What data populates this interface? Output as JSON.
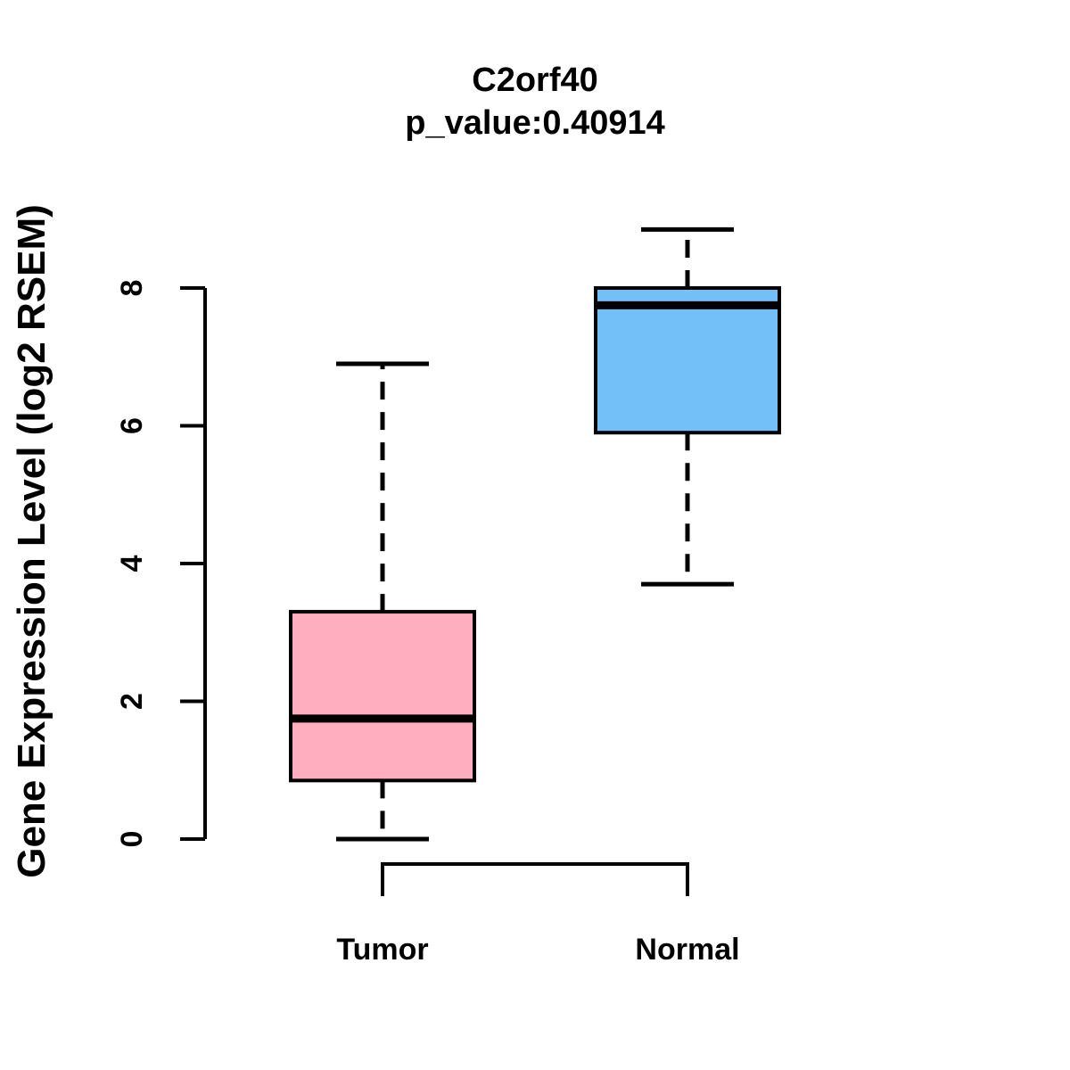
{
  "chart_data": {
    "type": "boxplot",
    "title": "C2orf40",
    "subtitle": "p_value:0.40914",
    "ylabel": "Gene Expression Level (log2 RSEM)",
    "xlabel": "",
    "yticks": [
      0,
      2,
      4,
      6,
      8
    ],
    "ylim": [
      0,
      8.9
    ],
    "grid": false,
    "legend": "none",
    "categories": [
      "Tumor",
      "Normal"
    ],
    "groups": [
      {
        "name": "Tumor",
        "fill_color": "#FFAEC0",
        "lower_whisker": 0,
        "q1": 0.85,
        "median": 1.75,
        "q3": 3.3,
        "upper_whisker": 6.9
      },
      {
        "name": "Normal",
        "fill_color": "#73BFF7",
        "lower_whisker": 3.7,
        "q1": 5.9,
        "median": 7.75,
        "q3": 8.0,
        "upper_whisker": 8.85
      }
    ],
    "stroke_color": "#000000",
    "background_color": "#FFFFFF"
  }
}
